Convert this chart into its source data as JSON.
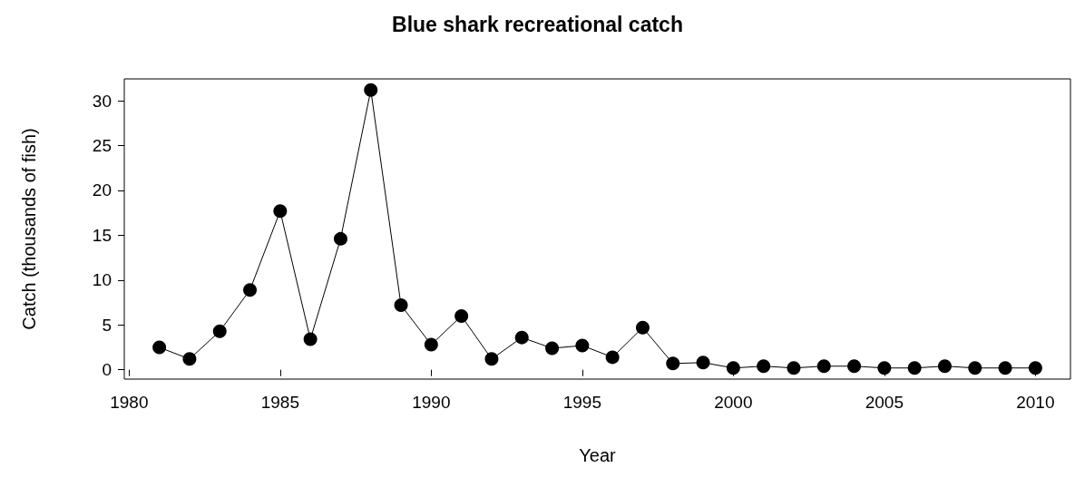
{
  "chart_data": {
    "type": "line",
    "title": "Blue shark recreational catch",
    "xlabel": "Year",
    "ylabel": "Catch (thousands of fish)",
    "x": [
      1981,
      1982,
      1983,
      1984,
      1985,
      1986,
      1987,
      1988,
      1989,
      1990,
      1991,
      1992,
      1993,
      1994,
      1995,
      1996,
      1997,
      1998,
      1999,
      2000,
      2001,
      2002,
      2003,
      2004,
      2005,
      2006,
      2007,
      2008,
      2009,
      2010
    ],
    "series": [
      {
        "color": "#000000",
        "values": [
          2.5,
          1.2,
          4.3,
          8.9,
          17.7,
          3.4,
          14.6,
          31.2,
          7.2,
          2.8,
          6.0,
          1.2,
          3.6,
          2.4,
          2.7,
          1.4,
          4.7,
          0.7,
          0.8,
          0.2,
          0.4,
          0.2,
          0.4,
          0.4,
          0.2,
          0.2,
          0.4,
          0.2,
          0.2,
          0.2
        ]
      }
    ],
    "xlim": [
      1979.84,
      2011.16
    ],
    "xticks": [
      1980,
      1985,
      1990,
      1995,
      2000,
      2005,
      2010
    ],
    "ylim": [
      -1.04,
      32.44
    ],
    "yticks": [
      0,
      5,
      10,
      15,
      20,
      25,
      30
    ],
    "marker": "circle",
    "line_style": "solid"
  }
}
